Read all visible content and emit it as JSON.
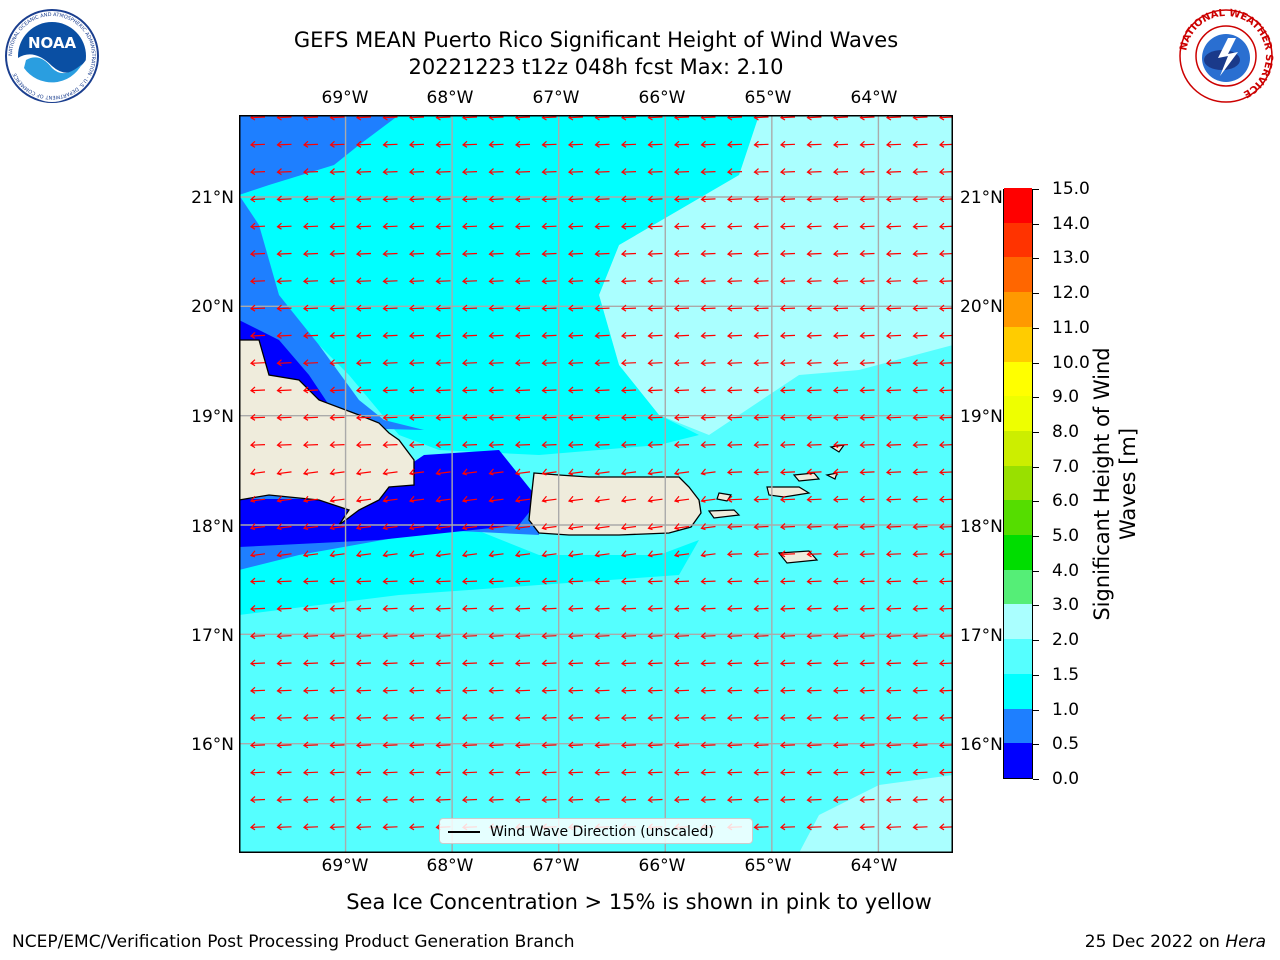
{
  "title": {
    "line1": "GEFS MEAN Puerto Rico Significant Height of Wind Waves",
    "line2": "20221223 t12z 048h fcst   Max: 2.10"
  },
  "logos": {
    "noaa_text": "NOAA",
    "noaa_ring": "NATIONAL OCEANIC AND ATMOSPHERIC ADMINISTRATION · U.S. DEPARTMENT OF COMMERCE",
    "nws_ring": "NATIONAL WEATHER SERVICE"
  },
  "map": {
    "lon_labels": [
      "69°W",
      "68°W",
      "67°W",
      "66°W",
      "65°W",
      "64°W"
    ],
    "lat_labels": [
      "21°N",
      "20°N",
      "19°N",
      "18°N",
      "17°N",
      "16°N"
    ],
    "extent": {
      "lon_min": -70.0,
      "lon_max": -63.3,
      "lat_min": 15.0,
      "lat_max": 21.75
    },
    "grid": true,
    "land_color": "#efecdc",
    "coast_color": "#000000",
    "arrow_color": "#ff0000",
    "arrow_direction": "westward (from east)",
    "legend": "Wind Wave Direction (unscaled)"
  },
  "colorbar": {
    "label": "Significant Height of Wind Waves [m]",
    "label_line1": "Significant Height of Wind",
    "label_line2": "Waves [m]",
    "ticks": [
      "0.0",
      "0.5",
      "1.0",
      "1.5",
      "2.0",
      "3.0",
      "4.0",
      "5.0",
      "6.0",
      "7.0",
      "8.0",
      "9.0",
      "10.0",
      "11.0",
      "12.0",
      "13.0",
      "14.0",
      "15.0"
    ],
    "colors": [
      "#0000ff",
      "#1e7fff",
      "#00ffff",
      "#55ffff",
      "#aaffff",
      "#55ee77",
      "#00dd00",
      "#55dd00",
      "#99e000",
      "#ccee00",
      "#eeff00",
      "#ffff00",
      "#ffcc00",
      "#ff9900",
      "#ff6600",
      "#ff3300",
      "#ff0000"
    ]
  },
  "footnote": "Sea Ice Concentration > 15% is shown in pink to yellow",
  "footer": {
    "left": "NCEP/EMC/Verification Post Processing Product Generation Branch",
    "right_prefix": "25 Dec 2022 on ",
    "right_machine": "Hera"
  }
}
